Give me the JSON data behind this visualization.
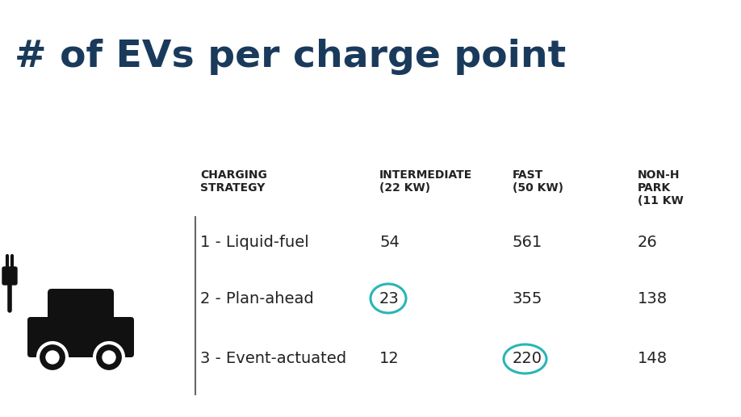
{
  "title": "# of EVs per charge point",
  "title_color": "#1a3a5c",
  "background_color": "#ffffff",
  "headers": [
    [
      "CHARGING",
      "STRATEGY"
    ],
    [
      "INTERMEDIATE",
      "(22 KW)"
    ],
    [
      "FAST",
      "(50 KW)"
    ],
    [
      "NON-H",
      "PARK",
      "(11 KW"
    ]
  ],
  "rows": [
    [
      "1 - Liquid-fuel",
      "54",
      "561",
      "26"
    ],
    [
      "2 - Plan-ahead",
      "23",
      "355",
      "138"
    ],
    [
      "3 - Event-actuated",
      "12",
      "220",
      "148"
    ]
  ],
  "circled_cells": [
    [
      1,
      1
    ],
    [
      2,
      2
    ]
  ],
  "circle_color": "#2ab5b5",
  "text_color": "#222222",
  "header_color": "#222222",
  "title_fontsize": 34,
  "header_fontsize": 10,
  "data_fontsize": 14
}
